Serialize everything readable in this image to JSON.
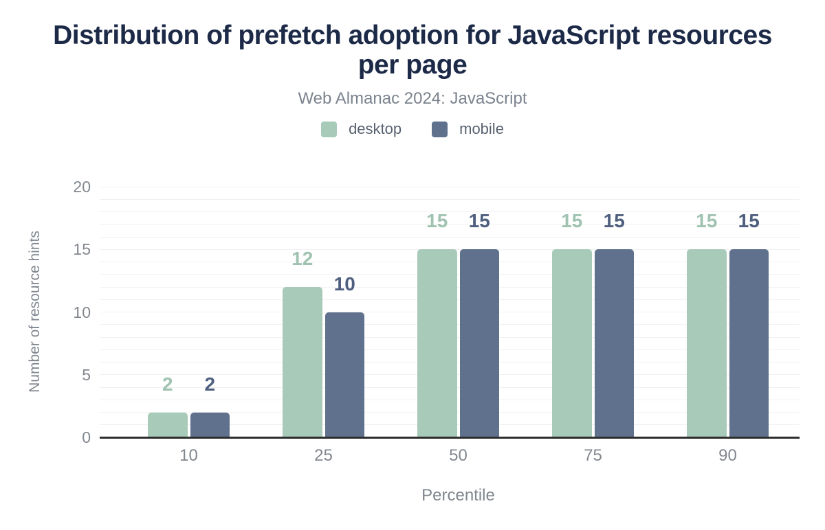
{
  "chart_data": {
    "type": "bar",
    "title": "Distribution of prefetch adoption for JavaScript resources per page",
    "subtitle": "Web Almanac 2024: JavaScript",
    "categories": [
      "10",
      "25",
      "50",
      "75",
      "90"
    ],
    "series": [
      {
        "name": "desktop",
        "color": "#a8cab9",
        "label_color": "#a0c3b1",
        "values": [
          2,
          12,
          15,
          15,
          15
        ]
      },
      {
        "name": "mobile",
        "color": "#5f718c",
        "label_color": "#4f5f7f",
        "values": [
          2,
          10,
          15,
          15,
          15
        ]
      }
    ],
    "xlabel": "Percentile",
    "ylabel": "Number of resource hints",
    "ylim": [
      0,
      20
    ],
    "y_ticks": [
      0,
      5,
      10,
      15,
      20
    ],
    "grid_step": 1,
    "grid": true,
    "legend_position": "top",
    "data_labels": true
  },
  "colors": {
    "background": "#ffffff",
    "title_text": "#1c2a47",
    "subtitle_text": "#7b838e",
    "legend_text": "#586270",
    "tick_text": "#82878e",
    "axis_title_text": "#7f868e",
    "gridline": "#f1f1f3",
    "baseline": "#2d2d2d"
  }
}
